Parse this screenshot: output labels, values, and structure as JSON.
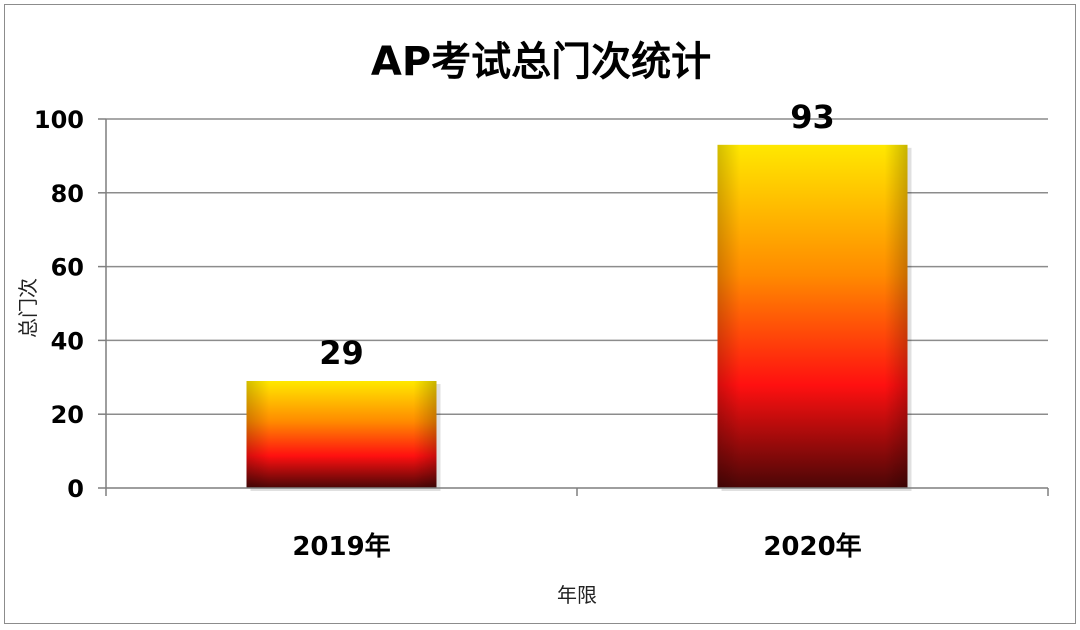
{
  "chart_data": {
    "type": "bar",
    "title": "AP考试总门次统计",
    "xlabel": "年限",
    "ylabel": "总门次",
    "categories": [
      "2019年",
      "2020年"
    ],
    "values": [
      29,
      93
    ],
    "ylim": [
      0,
      100
    ],
    "yticks": [
      0,
      20,
      40,
      60,
      80,
      100
    ],
    "grid": true,
    "legend": "none",
    "colors": {
      "bar_top": "#ffe800",
      "bar_mid_orange": "#ff8a00",
      "bar_mid_red": "#ff1010",
      "bar_bottom": "#4a0606"
    }
  }
}
